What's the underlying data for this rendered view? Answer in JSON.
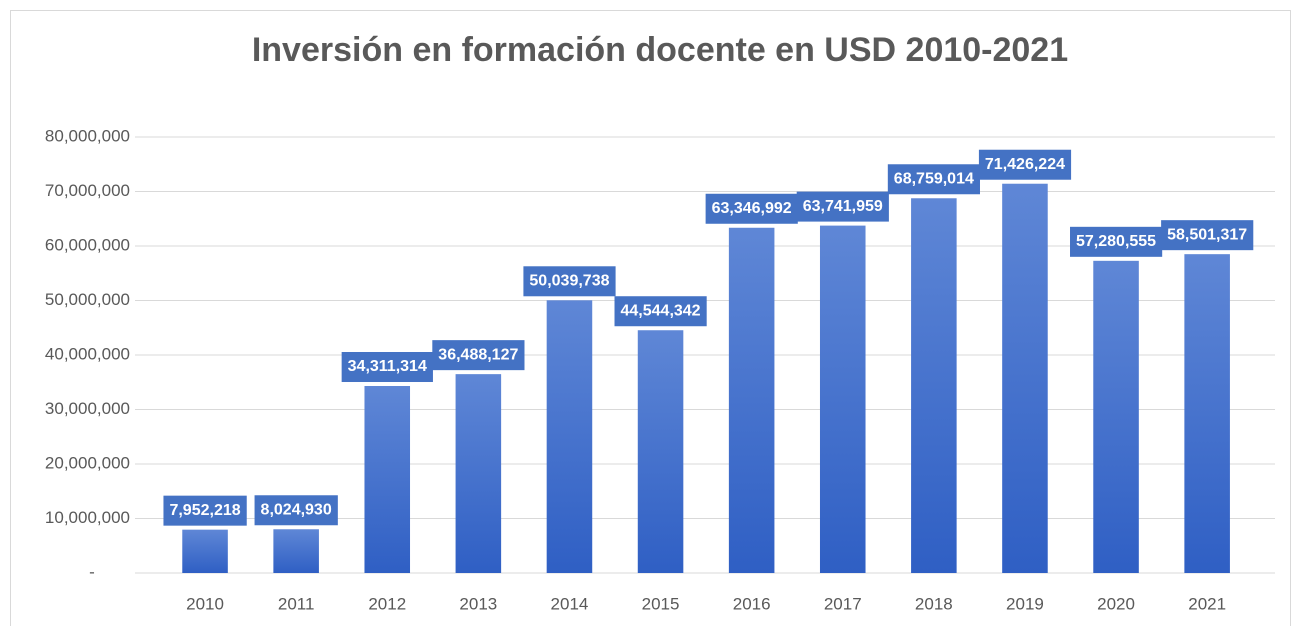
{
  "chart_data": {
    "type": "bar",
    "title": "Inversión en formación docente en USD 2010-2021",
    "categories": [
      "2010",
      "2011",
      "2012",
      "2013",
      "2014",
      "2015",
      "2016",
      "2017",
      "2018",
      "2019",
      "2020",
      "2021"
    ],
    "values": [
      7952218,
      8024930,
      34311314,
      36488127,
      50039738,
      44544342,
      63346992,
      63741959,
      68759014,
      71426224,
      57280555,
      58501317
    ],
    "value_labels": [
      "7,952,218",
      "8,024,930",
      "34,311,314",
      "36,488,127",
      "50,039,738",
      "44,544,342",
      "63,346,992",
      "63,741,959",
      "68,759,014",
      "71,426,224",
      "57,280,555",
      "58,501,317"
    ],
    "color": "#4472c4",
    "ylim": [
      0,
      80000000
    ],
    "yticks": [
      {
        "value": 0,
        "label": "-"
      },
      {
        "value": 10000000,
        "label": "10,000,000"
      },
      {
        "value": 20000000,
        "label": "20,000,000"
      },
      {
        "value": 30000000,
        "label": "30,000,000"
      },
      {
        "value": 40000000,
        "label": "40,000,000"
      },
      {
        "value": 50000000,
        "label": "50,000,000"
      },
      {
        "value": 60000000,
        "label": "60,000,000"
      },
      {
        "value": 70000000,
        "label": "70,000,000"
      },
      {
        "value": 80000000,
        "label": "80,000,000"
      }
    ],
    "grid": true
  }
}
